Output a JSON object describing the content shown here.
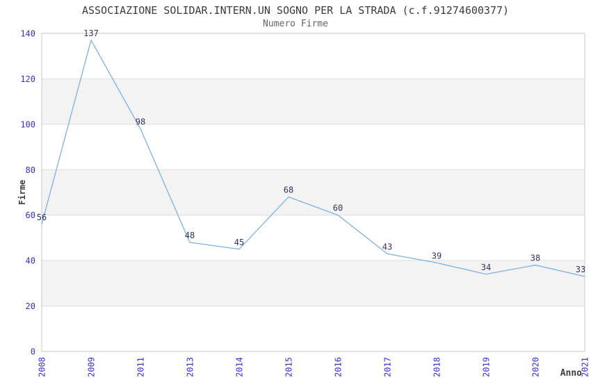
{
  "header": {
    "title": "ASSOCIAZIONE SOLIDAR.INTERN.UN SOGNO PER LA STRADA (c.f.91274600377)",
    "subtitle": "Numero Firme"
  },
  "chart_data": {
    "type": "line",
    "title": "ASSOCIAZIONE SOLIDAR.INTERN.UN SOGNO PER LA STRADA (c.f.91274600377)",
    "subtitle": "Numero Firme",
    "xlabel": "Anno",
    "ylabel": "Firme",
    "categories": [
      "2008",
      "2009",
      "2011",
      "2013",
      "2014",
      "2015",
      "2016",
      "2017",
      "2018",
      "2019",
      "2020",
      "2021"
    ],
    "values": [
      56,
      137,
      98,
      48,
      45,
      68,
      60,
      43,
      39,
      34,
      38,
      33
    ],
    "ylim": [
      0,
      140
    ],
    "ytick_step": 20,
    "yticks": [
      0,
      20,
      40,
      60,
      80,
      100,
      120,
      140
    ],
    "legend": "none",
    "grid": "horizontal-gridlines-with-alternating-bands",
    "point_labels_shown": true,
    "x_tick_rotation_deg": 90,
    "colors": {
      "line": "#7cb0e8",
      "tick_label": "#3232cd",
      "point_label": "#333366",
      "band": "#f3f3f3",
      "gridline": "#dddddd",
      "plot_border": "#c9c9c9",
      "title_text": "#3c3c3c",
      "subtitle_text": "#646464"
    }
  }
}
